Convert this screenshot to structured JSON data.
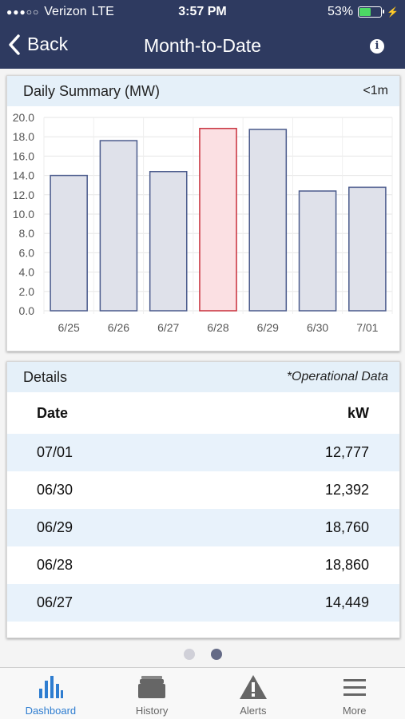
{
  "status_bar": {
    "signal": "●●●○○",
    "carrier": "Verizon",
    "network": "LTE",
    "time": "3:57 PM",
    "battery_text": "53%",
    "battery_level": 0.53
  },
  "nav": {
    "back_label": "Back",
    "title": "Month-to-Date"
  },
  "summary": {
    "title": "Daily Summary (MW)",
    "updated": "<1m"
  },
  "chart_data": {
    "type": "bar",
    "categories": [
      "6/25",
      "6/26",
      "6/27",
      "6/28",
      "6/29",
      "6/30",
      "7/01"
    ],
    "values": [
      14.0,
      17.6,
      14.4,
      18.86,
      18.76,
      12.39,
      12.78
    ],
    "highlight_index": 3,
    "ylim": [
      0,
      20
    ],
    "yticks": [
      "0.0",
      "2.0",
      "4.0",
      "6.0",
      "8.0",
      "10.0",
      "12.0",
      "14.0",
      "16.0",
      "18.0",
      "20.0"
    ],
    "grid": true,
    "colors": {
      "bar_fill": "#dfe1ea",
      "bar_stroke": "#4a5a8c",
      "highlight_fill": "#fbe0e3",
      "highlight_stroke": "#c8303c"
    }
  },
  "details": {
    "title": "Details",
    "note": "*Operational Data",
    "columns": [
      "Date",
      "kW"
    ],
    "rows": [
      {
        "date": "07/01",
        "kw": "12,777"
      },
      {
        "date": "06/30",
        "kw": "12,392"
      },
      {
        "date": "06/29",
        "kw": "18,760"
      },
      {
        "date": "06/28",
        "kw": "18,860"
      },
      {
        "date": "06/27",
        "kw": "14,449"
      }
    ]
  },
  "pager": {
    "count": 2,
    "active": 1
  },
  "tabs": [
    {
      "label": "Dashboard",
      "icon": "bar-chart-icon",
      "active": true
    },
    {
      "label": "History",
      "icon": "folder-icon",
      "active": false
    },
    {
      "label": "Alerts",
      "icon": "warning-icon",
      "active": false
    },
    {
      "label": "More",
      "icon": "menu-icon",
      "active": false
    }
  ],
  "colors": {
    "header_bg": "#2e3a60",
    "accent": "#2e7dd0"
  }
}
